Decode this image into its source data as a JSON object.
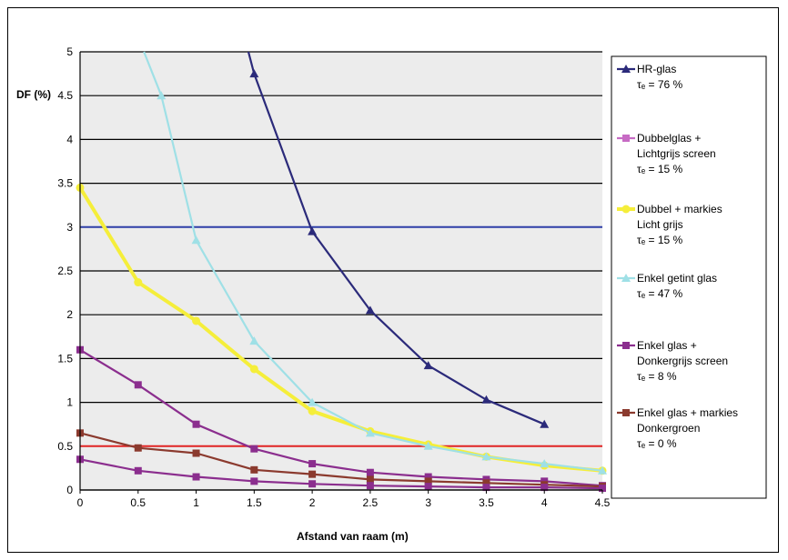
{
  "chart_data": {
    "type": "line",
    "xlabel": "Afstand van raam (m)",
    "ylabel": "DF (%)",
    "xlim": [
      0,
      4.5
    ],
    "ylim": [
      0,
      5
    ],
    "x_ticks": [
      "0",
      "0.5",
      "1",
      "1.5",
      "2",
      "2.5",
      "3",
      "3.5",
      "4",
      "4.5"
    ],
    "y_ticks": [
      "0",
      "0.5",
      "1",
      "1.5",
      "2",
      "2.5",
      "3",
      "3.5",
      "4",
      "4.5",
      "5"
    ],
    "grid": true,
    "legend_position": "right",
    "series": [
      {
        "name": "HR-glas",
        "legend_lines": [
          "HR-glas",
          "τₑ = 76 %"
        ],
        "color": "#2b2a7a",
        "marker": "triangle",
        "points": [
          [
            1.45,
            5.0
          ],
          [
            1.5,
            4.75
          ],
          [
            2,
            2.95
          ],
          [
            2.5,
            2.05
          ],
          [
            3,
            1.42
          ],
          [
            3.5,
            1.03
          ],
          [
            4,
            0.75
          ]
        ]
      },
      {
        "name": "Dubbelglas + Lichtgrijs screen",
        "legend_lines": [
          "Dubbelglas +",
          "Lichtgrijs screen",
          "τₑ = 15 %"
        ],
        "color": "#c76bc4",
        "marker": "square",
        "points": []
      },
      {
        "name": "Dubbel + markies Licht grijs",
        "legend_lines": [
          "Dubbel + markies",
          "Licht grijs",
          "τₑ = 15 %"
        ],
        "color": "#f5ee3a",
        "marker": "circle",
        "points": [
          [
            0,
            3.45
          ],
          [
            0.5,
            2.37
          ],
          [
            1,
            1.93
          ],
          [
            1.5,
            1.38
          ],
          [
            2,
            0.9
          ],
          [
            2.5,
            0.67
          ],
          [
            3,
            0.52
          ],
          [
            3.5,
            0.38
          ],
          [
            4,
            0.28
          ],
          [
            4.5,
            0.22
          ]
        ]
      },
      {
        "name": "Enkel getint glas",
        "legend_lines": [
          "Enkel getint glas",
          "τₑ = 47 %"
        ],
        "color": "#9fe0e6",
        "marker": "triangle",
        "points": [
          [
            0.55,
            5.0
          ],
          [
            0.7,
            4.5
          ],
          [
            1,
            2.85
          ],
          [
            1.5,
            1.7
          ],
          [
            2,
            1.0
          ],
          [
            2.5,
            0.65
          ],
          [
            3,
            0.5
          ],
          [
            3.5,
            0.38
          ],
          [
            4,
            0.3
          ],
          [
            4.5,
            0.22
          ]
        ]
      },
      {
        "name": "Enkel glas + Donkergrijs screen",
        "legend_lines": [
          "Enkel glas +",
          "Donkergrijs screen",
          "τₑ = 8 %"
        ],
        "color": "#8b2e8e",
        "marker": "square",
        "points": [
          [
            0,
            1.6
          ],
          [
            0.5,
            1.2
          ],
          [
            1,
            0.75
          ],
          [
            1.5,
            0.47
          ],
          [
            2,
            0.3
          ],
          [
            2.5,
            0.2
          ],
          [
            3,
            0.15
          ],
          [
            3.5,
            0.12
          ],
          [
            4,
            0.1
          ],
          [
            4.5,
            0.05
          ]
        ]
      },
      {
        "name": "Enkel glas + markies Donkergroen",
        "legend_lines": [
          "Enkel glas + markies",
          "Donkergroen",
          "τₑ = 0 %"
        ],
        "color": "#8b3a2e",
        "marker": "square",
        "points": [
          [
            0,
            0.65
          ],
          [
            0.5,
            0.48
          ],
          [
            1,
            0.42
          ],
          [
            1.5,
            0.23
          ],
          [
            2,
            0.18
          ],
          [
            2.5,
            0.12
          ],
          [
            3,
            0.1
          ],
          [
            3.5,
            0.08
          ],
          [
            4,
            0.06
          ],
          [
            4.5,
            0.04
          ]
        ]
      },
      {
        "name": "",
        "color": "#8b2e8e",
        "marker": "square",
        "points": [
          [
            0,
            0.35
          ],
          [
            0.5,
            0.22
          ],
          [
            1,
            0.15
          ],
          [
            1.5,
            0.1
          ],
          [
            2,
            0.07
          ],
          [
            2.5,
            0.05
          ],
          [
            3,
            0.04
          ],
          [
            3.5,
            0.03
          ],
          [
            4,
            0.03
          ],
          [
            4.5,
            0.02
          ]
        ]
      }
    ],
    "reference_lines": [
      {
        "y": 3,
        "color": "#2f3fa8"
      },
      {
        "y": 0.5,
        "color": "#e02424"
      }
    ]
  }
}
